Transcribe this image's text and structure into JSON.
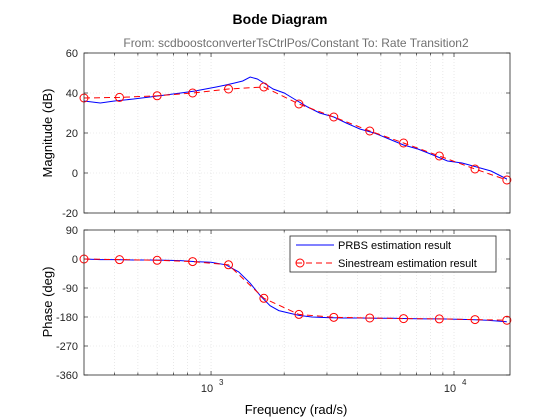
{
  "chart_data": {
    "type": "line",
    "title": "Bode Diagram",
    "subtitle": "From: scdboostconverterTsCtrlPos/Constant  To: Rate Transition2",
    "xlabel": "Frequency  (rad/s)",
    "x_scale": "log",
    "xlim": [
      300,
      17000
    ],
    "x_ticks": [
      1000,
      10000
    ],
    "x_tick_labels": [
      {
        "base": "10",
        "exp": "3"
      },
      {
        "base": "10",
        "exp": "4"
      }
    ],
    "grid": true,
    "colors": {
      "prbs": "#0000ff",
      "sine": "#ff0000",
      "axis": "#262626",
      "grid": "#d9d9d9",
      "subtitle": "#707070"
    },
    "panels": [
      {
        "id": "magnitude",
        "ylabel": "Magnitude (dB)",
        "ylim": [
          -20,
          60
        ],
        "y_ticks": [
          -20,
          0,
          20,
          40,
          60
        ],
        "y_tick_labels": [
          "-20",
          "0",
          "20",
          "40",
          "60"
        ]
      },
      {
        "id": "phase",
        "ylabel": "Phase (deg)",
        "ylim": [
          -360,
          90
        ],
        "y_ticks": [
          -360,
          -270,
          -180,
          -90,
          0,
          90
        ],
        "y_tick_labels": [
          "-360",
          "-270",
          "-180",
          "-90",
          "0",
          "90"
        ]
      }
    ],
    "legend": {
      "placement": "top-right of phase panel",
      "entries": [
        "PRBS estimation result",
        "Sinestream estimation result"
      ]
    },
    "series": [
      {
        "name": "PRBS estimation result",
        "style": "solid, no markers",
        "magnitude": {
          "x": [
            300,
            350,
            400,
            480,
            560,
            650,
            750,
            860,
            950,
            1050,
            1150,
            1250,
            1350,
            1450,
            1550,
            1650,
            1800,
            2000,
            2200,
            2500,
            2800,
            3200,
            3600,
            4100,
            4700,
            5400,
            6200,
            7100,
            8200,
            9400,
            10800,
            12400,
            14200,
            16500
          ],
          "y": [
            36,
            35,
            36,
            37,
            38,
            39,
            40,
            41,
            42,
            43,
            44,
            45,
            46,
            48,
            47,
            45,
            42,
            40,
            37,
            33,
            30,
            28,
            25,
            22,
            20,
            17,
            14,
            12,
            9,
            6,
            5,
            3,
            1,
            -3
          ]
        },
        "phase": {
          "x": [
            300,
            350,
            400,
            480,
            560,
            650,
            750,
            860,
            1000,
            1150,
            1300,
            1450,
            1600,
            1750,
            1900,
            2100,
            2300,
            2600,
            3000,
            3500,
            4100,
            4800,
            5600,
            6500,
            7600,
            8800,
            10200,
            11800,
            13700,
            16500
          ],
          "y": [
            0,
            -2,
            -2,
            -3,
            -3,
            -4,
            -5,
            -8,
            -10,
            -18,
            -40,
            -75,
            -115,
            -145,
            -160,
            -168,
            -175,
            -180,
            -182,
            -183,
            -183,
            -184,
            -184,
            -185,
            -186,
            -186,
            -187,
            -188,
            -190,
            -195
          ]
        }
      },
      {
        "name": "Sinestream estimation result",
        "style": "dashed, circle markers",
        "magnitude": {
          "x": [
            300,
            420,
            600,
            840,
            1180,
            1650,
            2300,
            3200,
            4500,
            6200,
            8700,
            12200,
            16500
          ],
          "y": [
            37.5,
            37.8,
            38.6,
            40.0,
            42.0,
            43.0,
            34.5,
            28.0,
            21.0,
            15.0,
            8.5,
            2.0,
            -3.5
          ]
        },
        "phase": {
          "x": [
            300,
            420,
            600,
            840,
            1180,
            1650,
            2300,
            3200,
            4500,
            6200,
            8700,
            12200,
            16500
          ],
          "y": [
            0,
            -2,
            -4,
            -8,
            -18,
            -122,
            -172,
            -181,
            -183,
            -185,
            -186,
            -188,
            -190
          ]
        }
      }
    ]
  }
}
